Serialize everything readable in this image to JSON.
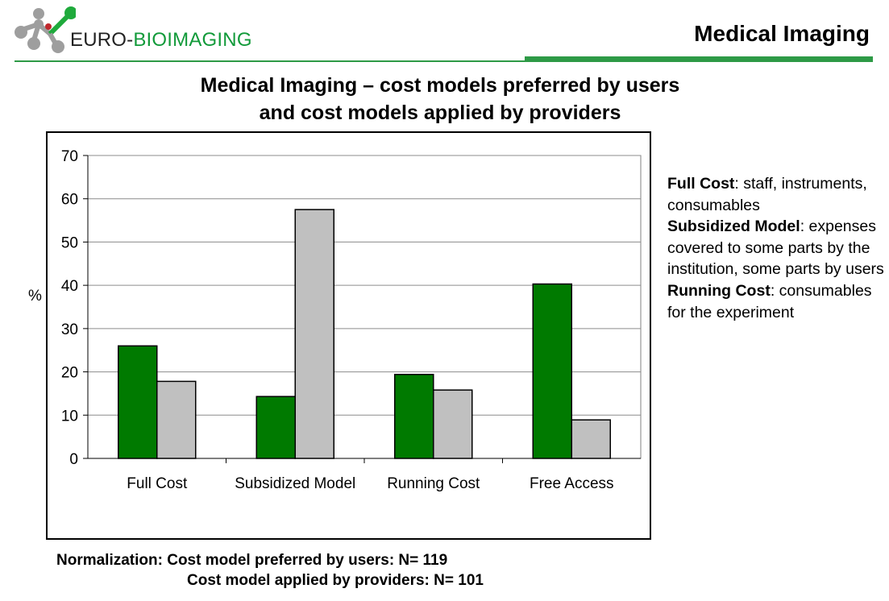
{
  "header": {
    "logo_text_dark": "EURO-",
    "logo_text_green": "BIOIMAGING",
    "section_title": "Medical Imaging",
    "colors": {
      "green": "#2e9a46",
      "logo_gray": "#9e9e9e",
      "logo_green": "#1faa3c",
      "logo_red": "#c0282d"
    }
  },
  "title": {
    "line1": "Medical Imaging – cost models preferred by users",
    "line2": "and cost models applied by providers"
  },
  "chart_data": {
    "type": "bar",
    "categories": [
      "Full Cost",
      "Subsidized Model",
      "Running Cost",
      "Free Access"
    ],
    "series": [
      {
        "values": [
          26,
          14.3,
          19.4,
          40.3
        ],
        "color": "#007a00"
      },
      {
        "values": [
          17.8,
          57.5,
          15.8,
          8.9
        ],
        "color": "#c0c0c0"
      }
    ],
    "ylabel": "%",
    "ylim": [
      0,
      70
    ],
    "yticks": [
      0,
      10,
      20,
      30,
      40,
      50,
      60,
      70
    ],
    "grid": true
  },
  "legend": {
    "items": [
      {
        "term": "Full Cost",
        "desc": ": staff, instruments, consumables"
      },
      {
        "term": "Subsidized Model",
        "desc": ": expenses covered to some parts by the institution, some parts by users"
      },
      {
        "term": "Running Cost",
        "desc": ": consumables for the experiment"
      }
    ]
  },
  "normalization": {
    "line1": "Normalization: Cost model preferred by users:  N= 119",
    "line2": "Cost model applied by providers: N= 101"
  }
}
